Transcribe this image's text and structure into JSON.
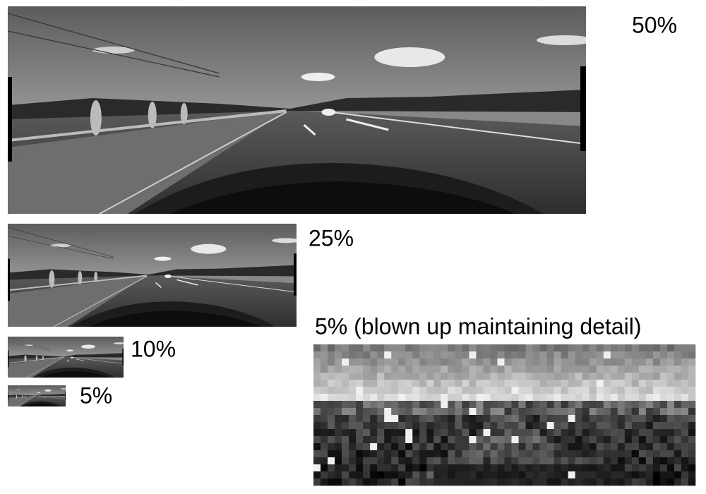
{
  "panels": [
    {
      "label": "50%"
    },
    {
      "label": "25%"
    },
    {
      "label": "10%"
    },
    {
      "label": "5%"
    },
    {
      "label": "5% (blown up maintaining detail)"
    }
  ]
}
